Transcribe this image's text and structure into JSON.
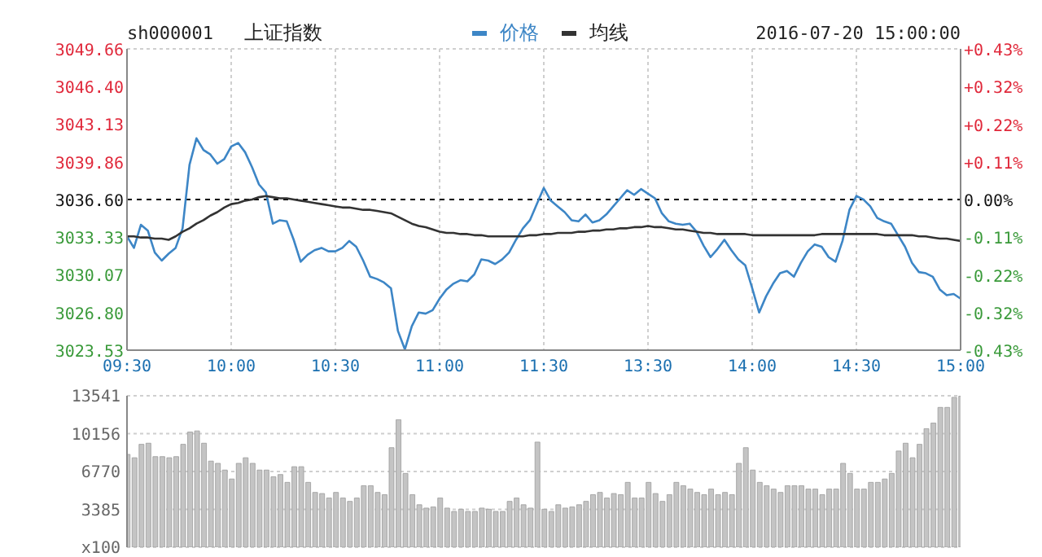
{
  "chart_data": [
    {
      "type": "line",
      "title": "上证指数",
      "annotations": [
        "sh000001",
        "2016-07-20 15:00:00"
      ],
      "categories": [
        "09:30",
        null,
        null,
        null,
        null,
        null,
        null,
        null,
        null,
        null,
        null,
        null,
        null,
        null,
        null,
        "10:00",
        null,
        null,
        null,
        null,
        null,
        null,
        null,
        null,
        null,
        null,
        null,
        null,
        null,
        null,
        "10:30",
        null,
        null,
        null,
        null,
        null,
        null,
        null,
        null,
        null,
        null,
        null,
        null,
        null,
        null,
        "11:00",
        null,
        null,
        null,
        null,
        null,
        null,
        null,
        null,
        null,
        null,
        null,
        null,
        null,
        null,
        "11:30",
        null,
        null,
        null,
        null,
        null,
        null,
        null,
        null,
        null,
        null,
        null,
        null,
        null,
        null,
        "13:30",
        null,
        null,
        null,
        null,
        null,
        null,
        null,
        null,
        null,
        null,
        null,
        null,
        null,
        null,
        "14:00",
        null,
        null,
        null,
        null,
        null,
        null,
        null,
        null,
        null,
        null,
        null,
        null,
        null,
        null,
        "14:30",
        null,
        null,
        null,
        null,
        null,
        null,
        null,
        null,
        null,
        null,
        null,
        null,
        null,
        null,
        "15:00"
      ],
      "series": [
        {
          "name": "价格",
          "color": "#3d86c6",
          "values": [
            3033.4,
            3032.4,
            3034.4,
            3033.9,
            3032.0,
            3031.3,
            3031.9,
            3032.4,
            3034.1,
            3039.6,
            3041.9,
            3040.9,
            3040.5,
            3039.7,
            3040.1,
            3041.2,
            3041.5,
            3040.7,
            3039.4,
            3037.9,
            3037.2,
            3034.5,
            3034.8,
            3034.7,
            3033.1,
            3031.2,
            3031.8,
            3032.2,
            3032.4,
            3032.1,
            3032.1,
            3032.4,
            3033.0,
            3032.5,
            3031.3,
            3029.9,
            3029.7,
            3029.4,
            3028.9,
            3025.2,
            3023.6,
            3025.6,
            3026.8,
            3026.7,
            3027.0,
            3028.0,
            3028.8,
            3029.3,
            3029.6,
            3029.5,
            3030.1,
            3031.4,
            3031.3,
            3031.0,
            3031.4,
            3032.0,
            3033.1,
            3034.1,
            3034.8,
            3036.2,
            3037.6,
            3036.5,
            3036.0,
            3035.5,
            3034.8,
            3034.7,
            3035.3,
            3034.6,
            3034.8,
            3035.3,
            3036.0,
            3036.7,
            3037.4,
            3037.0,
            3037.5,
            3037.1,
            3036.7,
            3035.4,
            3034.7,
            3034.5,
            3034.4,
            3034.5,
            3033.8,
            3032.6,
            3031.6,
            3032.3,
            3033.1,
            3032.2,
            3031.4,
            3030.9,
            3028.9,
            3026.8,
            3028.2,
            3029.3,
            3030.2,
            3030.4,
            3029.9,
            3031.1,
            3032.1,
            3032.7,
            3032.5,
            3031.6,
            3031.2,
            3033.0,
            3035.7,
            3036.9,
            3036.6,
            3036.0,
            3035.0,
            3034.7,
            3034.5,
            3033.5,
            3032.5,
            3031.1,
            3030.3,
            3030.2,
            3029.9,
            3028.8,
            3028.3,
            3028.4,
            3028.0
          ]
        },
        {
          "name": "均线",
          "color": "#333333",
          "values": [
            3033.4,
            3033.4,
            3033.3,
            3033.3,
            3033.2,
            3033.2,
            3033.1,
            3033.4,
            3033.8,
            3034.1,
            3034.5,
            3034.8,
            3035.2,
            3035.5,
            3035.9,
            3036.2,
            3036.3,
            3036.5,
            3036.6,
            3036.8,
            3036.9,
            3036.8,
            3036.7,
            3036.7,
            3036.6,
            3036.5,
            3036.4,
            3036.3,
            3036.2,
            3036.1,
            3036.0,
            3035.9,
            3035.9,
            3035.8,
            3035.7,
            3035.7,
            3035.6,
            3035.5,
            3035.4,
            3035.1,
            3034.8,
            3034.5,
            3034.3,
            3034.2,
            3034.0,
            3033.8,
            3033.7,
            3033.7,
            3033.6,
            3033.6,
            3033.5,
            3033.5,
            3033.4,
            3033.4,
            3033.4,
            3033.4,
            3033.4,
            3033.4,
            3033.5,
            3033.5,
            3033.6,
            3033.6,
            3033.7,
            3033.7,
            3033.7,
            3033.8,
            3033.8,
            3033.9,
            3033.9,
            3034.0,
            3034.0,
            3034.1,
            3034.1,
            3034.2,
            3034.2,
            3034.3,
            3034.2,
            3034.2,
            3034.1,
            3034.0,
            3034.0,
            3033.9,
            3033.8,
            3033.7,
            3033.7,
            3033.6,
            3033.6,
            3033.6,
            3033.6,
            3033.6,
            3033.5,
            3033.5,
            3033.5,
            3033.5,
            3033.5,
            3033.5,
            3033.5,
            3033.5,
            3033.5,
            3033.5,
            3033.6,
            3033.6,
            3033.6,
            3033.6,
            3033.6,
            3033.6,
            3033.6,
            3033.6,
            3033.6,
            3033.5,
            3033.5,
            3033.5,
            3033.5,
            3033.5,
            3033.4,
            3033.4,
            3033.3,
            3033.2,
            3033.2,
            3033.1,
            3033.0
          ]
        }
      ],
      "ylim": [
        3023.53,
        3049.66
      ],
      "yticks": [
        3023.53,
        {
          "value": 3026.8,
          "label": "3026.80"
        },
        3030.07,
        3033.33,
        {
          "value": 3036.6,
          "label": "3036.60"
        },
        3039.86,
        3043.13,
        {
          "value": 3046.4,
          "label": "3046.40"
        },
        3049.66
      ],
      "y2lim": [
        -0.43,
        0.43
      ],
      "y2ticks": [
        {
          "value": -0.43,
          "label": "-0.43%"
        },
        {
          "value": -0.3225,
          "label": "-0.32%"
        },
        {
          "value": -0.215,
          "label": "-0.22%"
        },
        {
          "value": -0.1075,
          "label": "-0.11%"
        },
        {
          "value": 0,
          "label": "0.00%"
        },
        {
          "value": 0.1075,
          "label": "+0.11%"
        },
        {
          "value": 0.215,
          "label": "+0.22%"
        },
        {
          "value": 0.3225,
          "label": "+0.32%"
        },
        {
          "value": 0.43,
          "label": "+0.43%"
        }
      ],
      "ref_lines": [
        {
          "axis": "y",
          "value": 3036.6,
          "color": "#000000",
          "line_style": "dashed"
        }
      ],
      "grid": true,
      "legend": "top"
    },
    {
      "type": "bar",
      "color": "#c4c4c4",
      "categories": [
        null,
        null,
        null,
        null,
        null,
        null,
        null,
        null,
        null,
        null,
        null,
        null,
        null,
        null,
        null,
        null,
        null,
        null,
        null,
        null,
        null,
        null,
        null,
        null,
        null,
        null,
        null,
        null,
        null,
        null,
        null,
        null,
        null,
        null,
        null,
        null,
        null,
        null,
        null,
        null,
        null,
        null,
        null,
        null,
        null,
        null,
        null,
        null,
        null,
        null,
        null,
        null,
        null,
        null,
        null,
        null,
        null,
        null,
        null,
        null,
        null,
        null,
        null,
        null,
        null,
        null,
        null,
        null,
        null,
        null,
        null,
        null,
        null,
        null,
        null,
        null,
        null,
        null,
        null,
        null,
        null,
        null,
        null,
        null,
        null,
        null,
        null,
        null,
        null,
        null,
        null,
        null,
        null,
        null,
        null,
        null,
        null,
        null,
        null,
        null,
        null,
        null,
        null,
        null,
        null,
        null,
        null,
        null,
        null,
        null,
        null,
        null,
        null,
        null,
        null,
        null,
        null,
        null,
        null,
        null,
        null
      ],
      "values": [
        8300,
        8000,
        9200,
        9300,
        8100,
        8100,
        8000,
        8100,
        9200,
        10300,
        10400,
        9300,
        7700,
        7500,
        6900,
        6100,
        7500,
        8000,
        7500,
        6900,
        6900,
        6300,
        6500,
        5800,
        7200,
        7200,
        5800,
        4900,
        4800,
        4400,
        4900,
        4400,
        4100,
        4400,
        5500,
        5500,
        4900,
        4700,
        8900,
        11400,
        6600,
        4700,
        3800,
        3500,
        3600,
        4400,
        3500,
        3200,
        3400,
        3200,
        3200,
        3500,
        3400,
        3200,
        3200,
        4100,
        4400,
        3800,
        3500,
        9400,
        3400,
        3200,
        3800,
        3500,
        3600,
        3800,
        4100,
        4700,
        4900,
        4400,
        4800,
        4700,
        5800,
        4400,
        4400,
        5800,
        4800,
        4100,
        4700,
        5800,
        5500,
        5200,
        4900,
        4700,
        5200,
        4700,
        4900,
        4700,
        7500,
        8900,
        6900,
        5800,
        5500,
        5200,
        4900,
        5500,
        5500,
        5500,
        5200,
        5200,
        4700,
        5200,
        5200,
        7500,
        6600,
        5200,
        5200,
        5800,
        5800,
        6100,
        6600,
        8600,
        9300,
        8000,
        9200,
        10600,
        11100,
        12500,
        12500,
        13400,
        13500
      ],
      "ylim": [
        0,
        13541
      ],
      "yticks": [
        {
          "value": 0,
          "label": "x100"
        },
        3385,
        6770,
        10156,
        13541
      ],
      "tick_labels": "y",
      "grid": "y"
    }
  ]
}
